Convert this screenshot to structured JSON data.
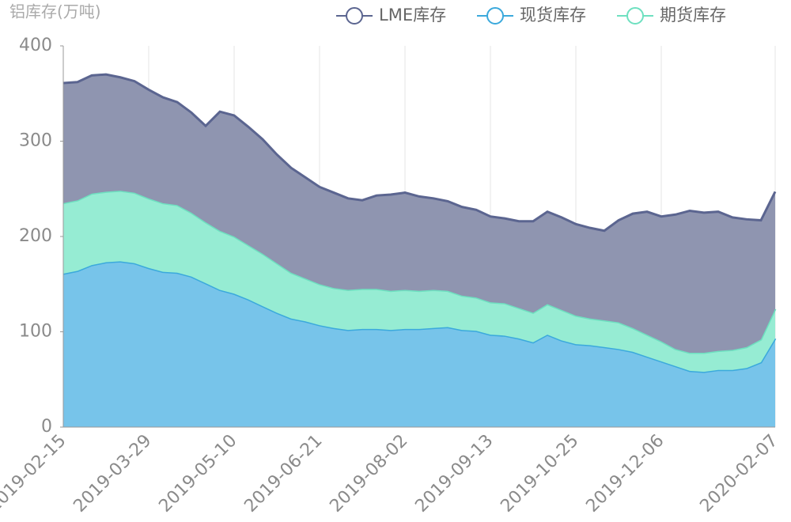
{
  "chart_data": {
    "type": "area",
    "stacked": true,
    "y_label": "铝库存(万吨)",
    "categories": [
      "2019-02-15",
      null,
      null,
      null,
      null,
      null,
      "2019-03-29",
      null,
      null,
      null,
      null,
      null,
      "2019-05-10",
      null,
      null,
      null,
      null,
      null,
      "2019-06-21",
      null,
      null,
      null,
      null,
      null,
      "2019-08-02",
      null,
      null,
      null,
      null,
      null,
      "2019-09-13",
      null,
      null,
      null,
      null,
      null,
      "2019-10-25",
      null,
      null,
      null,
      null,
      null,
      "2019-12-06",
      null,
      null,
      null,
      null,
      null,
      null,
      null,
      "2020-02-07"
    ],
    "series": [
      {
        "name": "LME库存",
        "color": "#5b6590",
        "fill": "#8f95b0",
        "values": [
          126,
          124,
          124,
          123,
          119,
          117,
          114,
          111,
          108,
          105,
          101,
          125,
          127,
          124,
          120,
          114,
          110,
          106,
          102,
          100,
          96,
          93,
          98,
          101,
          102,
          99,
          96,
          94,
          93,
          92,
          90,
          89,
          91,
          96,
          97,
          97,
          96,
          95,
          94,
          107,
          120,
          129,
          131,
          141,
          149,
          147,
          146,
          139,
          134,
          125,
          123
        ]
      },
      {
        "name": "现货库存",
        "color": "#3ba9dc",
        "fill": "#77c4ea",
        "values": [
          161,
          164,
          170,
          173,
          174,
          172,
          167,
          163,
          162,
          158,
          151,
          144,
          140,
          134,
          127,
          120,
          114,
          111,
          107,
          104,
          102,
          103,
          103,
          102,
          103,
          103,
          104,
          105,
          102,
          101,
          97,
          96,
          93,
          89,
          97,
          91,
          87,
          86,
          84,
          82,
          79,
          74,
          69,
          64,
          59,
          58,
          60,
          60,
          62,
          68,
          93
        ]
      },
      {
        "name": "期货库存",
        "color": "#6ee0c0",
        "fill": "#96ecd3",
        "values": [
          74,
          74,
          75,
          74,
          74,
          74,
          73,
          72,
          71,
          67,
          64,
          62,
          60,
          57,
          55,
          52,
          48,
          45,
          43,
          42,
          42,
          42,
          42,
          41,
          41,
          40,
          40,
          38,
          36,
          35,
          34,
          34,
          32,
          31,
          32,
          32,
          30,
          28,
          28,
          28,
          25,
          23,
          21,
          18,
          19,
          20,
          20,
          21,
          22,
          24,
          31
        ]
      }
    ],
    "ylim": [
      0,
      400
    ],
    "yticks": [
      0,
      100,
      200,
      300,
      400
    ],
    "grid": true
  }
}
